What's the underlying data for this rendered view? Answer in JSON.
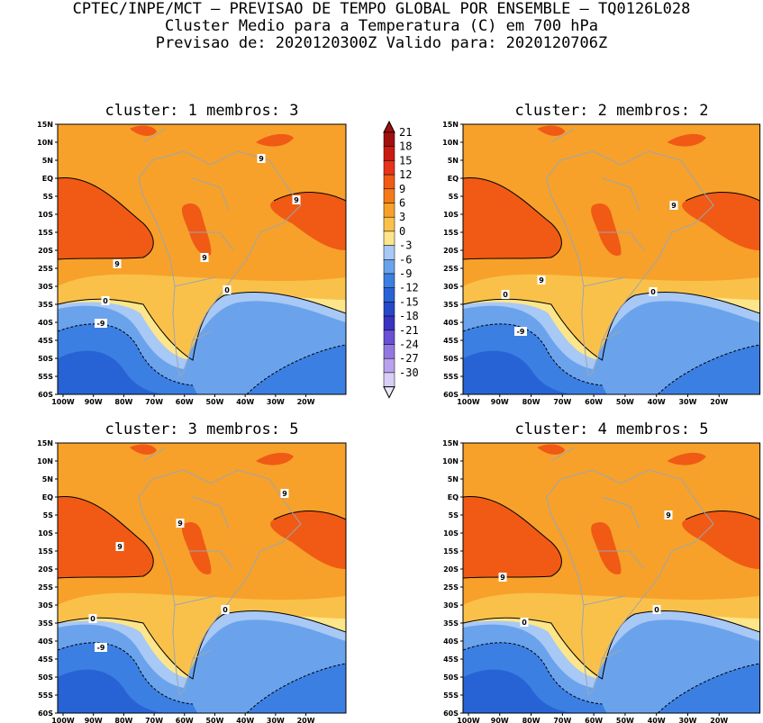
{
  "header": {
    "line1": "CPTEC/INPE/MCT – PREVISAO DE TEMPO GLOBAL POR ENSEMBLE – TQ0126L028",
    "line2": "Cluster Medio para a Temperatura (C) em 700 hPa",
    "line3": "Previsao de: 2020120300Z   Valido para: 2020120706Z"
  },
  "panels": [
    {
      "title": "cluster: 1  membros: 3"
    },
    {
      "title": "cluster: 2  membros: 2"
    },
    {
      "title": "cluster: 3  membros: 5"
    },
    {
      "title": "cluster: 4  membros: 5"
    }
  ],
  "lat_ticks": [
    "15N",
    "10N",
    "5N",
    "EQ",
    "5S",
    "10S",
    "15S",
    "20S",
    "25S",
    "30S",
    "35S",
    "40S",
    "45S",
    "50S",
    "55S",
    "60S"
  ],
  "lon_ticks": [
    "100W",
    "90W",
    "80W",
    "70W",
    "60W",
    "50W",
    "40W",
    "30W",
    "20W"
  ],
  "colorbar": {
    "labels": [
      "21",
      "18",
      "15",
      "12",
      "9",
      "6",
      "3",
      "0",
      "-3",
      "-6",
      "-9",
      "-12",
      "-15",
      "-18",
      "-21",
      "-24",
      "-27",
      "-30"
    ],
    "colors": [
      "#a01010",
      "#c81a12",
      "#e8321a",
      "#f05a14",
      "#f47a18",
      "#f7a12a",
      "#fac14a",
      "#fde58a",
      "#a8c8f6",
      "#6aa3ec",
      "#3b7fe2",
      "#2863d6",
      "#2648c8",
      "#3a32c0",
      "#6a50d6",
      "#9478e2",
      "#b8a2ec",
      "#d8cef6"
    ]
  },
  "contour_labels": {
    "p1": [
      "9",
      "9",
      "9",
      "9",
      "0",
      "0",
      "-9"
    ],
    "p2": [
      "9",
      "9",
      "0",
      "0",
      "-9"
    ],
    "p3": [
      "9",
      "9",
      "9",
      "0",
      "0",
      "-9"
    ],
    "p4": [
      "9",
      "9",
      "0",
      "0"
    ]
  }
}
